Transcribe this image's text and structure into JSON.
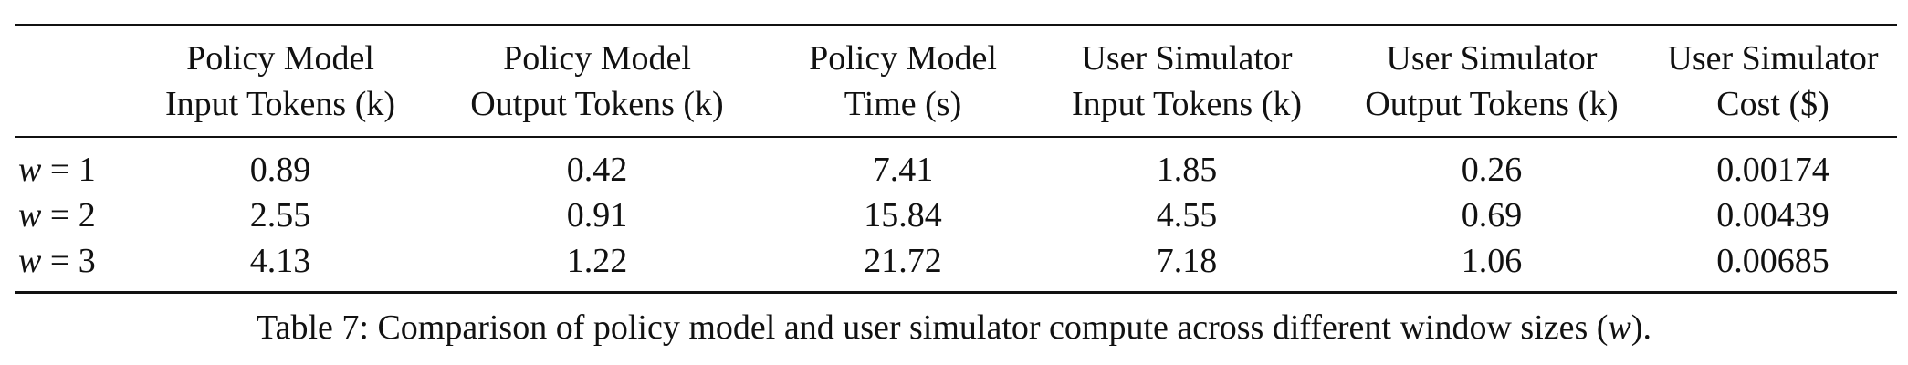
{
  "table": {
    "columns": [
      {
        "line1": "",
        "line2": ""
      },
      {
        "line1": "Policy Model",
        "line2": "Input Tokens (k)"
      },
      {
        "line1": "Policy Model",
        "line2": "Output Tokens (k)"
      },
      {
        "line1": "Policy Model",
        "line2": "Time (s)"
      },
      {
        "line1": "User Simulator",
        "line2": "Input Tokens (k)"
      },
      {
        "line1": "User Simulator",
        "line2": "Output Tokens (k)"
      },
      {
        "line1": "User Simulator",
        "line2": "Cost ($)"
      }
    ],
    "rows": [
      {
        "var": "w",
        "eq": " = ",
        "num": "1",
        "cells": [
          "0.89",
          "0.42",
          "7.41",
          "1.85",
          "0.26",
          "0.00174"
        ]
      },
      {
        "var": "w",
        "eq": " = ",
        "num": "2",
        "cells": [
          "2.55",
          "0.91",
          "15.84",
          "4.55",
          "0.69",
          "0.00439"
        ]
      },
      {
        "var": "w",
        "eq": " = ",
        "num": "3",
        "cells": [
          "4.13",
          "1.22",
          "21.72",
          "7.18",
          "1.06",
          "0.00685"
        ]
      }
    ]
  },
  "caption": {
    "prefix": "Table 7: Comparison of policy model and user simulator compute across different window sizes (",
    "var": "w",
    "suffix": ")."
  }
}
